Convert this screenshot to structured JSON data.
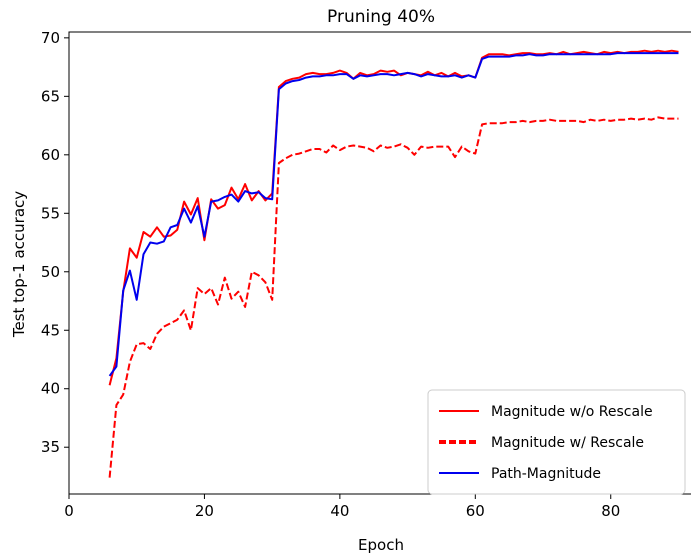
{
  "chart_data": {
    "type": "line",
    "title": "Pruning 40%",
    "xlabel": "Epoch",
    "ylabel": "Test top-1 accuracy",
    "xlim": [
      0,
      92
    ],
    "ylim": [
      31,
      70.5
    ],
    "xticks": [
      0,
      20,
      40,
      60,
      80
    ],
    "yticks": [
      35,
      40,
      45,
      50,
      55,
      60,
      65,
      70
    ],
    "grid": false,
    "legend_position": "bottom-right",
    "x": [
      6,
      7,
      8,
      9,
      10,
      11,
      12,
      13,
      14,
      15,
      16,
      17,
      18,
      19,
      20,
      21,
      22,
      23,
      24,
      25,
      26,
      27,
      28,
      29,
      30,
      31,
      32,
      33,
      34,
      35,
      36,
      37,
      38,
      39,
      40,
      41,
      42,
      43,
      44,
      45,
      46,
      47,
      48,
      49,
      50,
      51,
      52,
      53,
      54,
      55,
      56,
      57,
      58,
      59,
      60,
      61,
      62,
      63,
      64,
      65,
      66,
      67,
      68,
      69,
      70,
      71,
      72,
      73,
      74,
      75,
      76,
      77,
      78,
      79,
      80,
      81,
      82,
      83,
      84,
      85,
      86,
      87,
      88,
      89,
      90
    ],
    "series": [
      {
        "name": "Magnitude w/o Rescale",
        "color": "#ff0000",
        "style": "solid",
        "values": [
          40.3,
          42.6,
          48.3,
          52.0,
          51.2,
          53.4,
          53.0,
          53.8,
          53.0,
          53.1,
          53.6,
          56.0,
          54.9,
          56.3,
          52.7,
          56.2,
          55.4,
          55.7,
          57.2,
          56.2,
          57.5,
          56.1,
          56.9,
          56.1,
          56.7,
          65.8,
          66.3,
          66.5,
          66.6,
          66.9,
          67.0,
          66.9,
          66.9,
          67.0,
          67.2,
          67.0,
          66.5,
          67.0,
          66.8,
          66.9,
          67.2,
          67.1,
          67.2,
          66.8,
          67.0,
          66.9,
          66.8,
          67.1,
          66.8,
          67.0,
          66.7,
          67.0,
          66.7,
          66.8,
          66.6,
          68.3,
          68.6,
          68.6,
          68.6,
          68.5,
          68.6,
          68.7,
          68.7,
          68.6,
          68.6,
          68.7,
          68.6,
          68.8,
          68.6,
          68.7,
          68.8,
          68.7,
          68.6,
          68.8,
          68.7,
          68.8,
          68.7,
          68.8,
          68.8,
          68.9,
          68.8,
          68.9,
          68.8,
          68.9,
          68.8
        ]
      },
      {
        "name": "Magnitude w/ Rescale",
        "color": "#ff0000",
        "style": "dashed",
        "values": [
          32.4,
          38.6,
          39.5,
          42.3,
          43.8,
          43.9,
          43.4,
          44.7,
          45.3,
          45.6,
          45.9,
          46.7,
          45.0,
          48.6,
          48.1,
          48.6,
          47.2,
          49.5,
          47.7,
          48.3,
          47.0,
          50.0,
          49.7,
          49.1,
          47.6,
          59.3,
          59.7,
          60.0,
          60.1,
          60.3,
          60.5,
          60.5,
          60.2,
          60.8,
          60.4,
          60.7,
          60.8,
          60.7,
          60.6,
          60.3,
          60.8,
          60.6,
          60.7,
          60.9,
          60.6,
          60.0,
          60.7,
          60.6,
          60.7,
          60.7,
          60.7,
          59.8,
          60.7,
          60.3,
          60.1,
          62.6,
          62.7,
          62.7,
          62.7,
          62.8,
          62.8,
          62.9,
          62.8,
          62.9,
          62.9,
          63.0,
          62.9,
          62.9,
          62.9,
          62.9,
          62.8,
          63.0,
          62.9,
          63.0,
          62.9,
          63.0,
          63.0,
          63.1,
          63.0,
          63.1,
          63.0,
          63.2,
          63.1,
          63.1,
          63.1
        ]
      },
      {
        "name": "Path-Magnitude",
        "color": "#0000ee",
        "style": "solid",
        "values": [
          41.1,
          41.9,
          48.4,
          50.1,
          47.6,
          51.5,
          52.5,
          52.4,
          52.6,
          53.8,
          54.0,
          55.4,
          54.2,
          55.6,
          53.0,
          56.0,
          56.1,
          56.4,
          56.6,
          56.0,
          56.9,
          56.7,
          56.8,
          56.3,
          56.2,
          65.6,
          66.1,
          66.3,
          66.4,
          66.6,
          66.7,
          66.7,
          66.8,
          66.8,
          66.9,
          66.9,
          66.5,
          66.8,
          66.7,
          66.8,
          66.9,
          66.9,
          66.8,
          66.9,
          67.0,
          66.9,
          66.7,
          66.9,
          66.8,
          66.7,
          66.7,
          66.8,
          66.6,
          66.8,
          66.6,
          68.2,
          68.4,
          68.4,
          68.4,
          68.4,
          68.5,
          68.5,
          68.6,
          68.5,
          68.5,
          68.6,
          68.6,
          68.6,
          68.6,
          68.6,
          68.6,
          68.6,
          68.6,
          68.6,
          68.6,
          68.7,
          68.7,
          68.7,
          68.7,
          68.7,
          68.7,
          68.7,
          68.7,
          68.7,
          68.7
        ]
      }
    ]
  }
}
